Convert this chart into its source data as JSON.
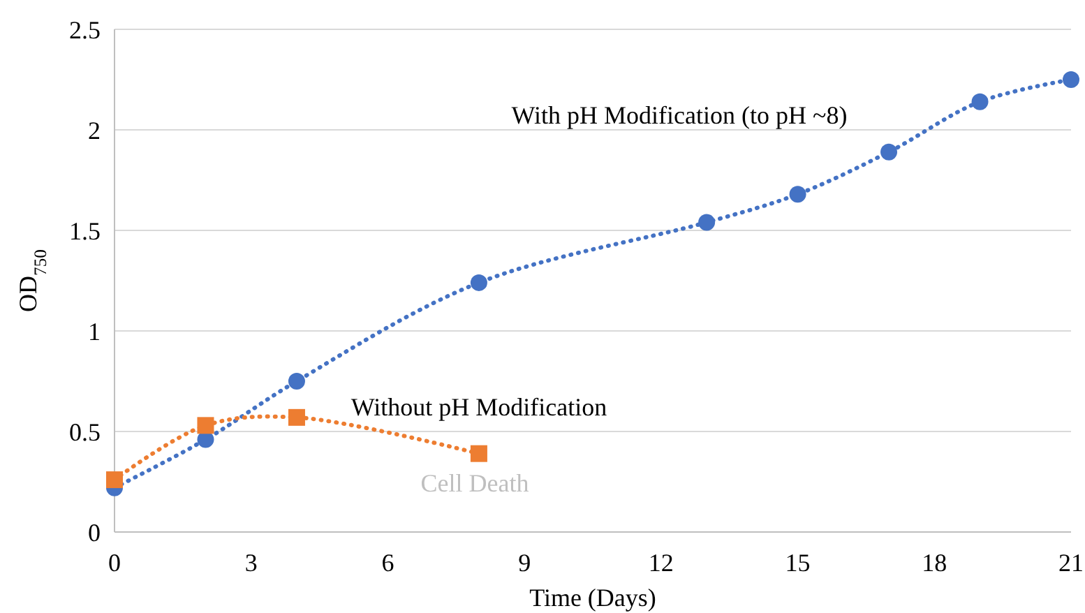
{
  "chart_data": {
    "type": "line",
    "xlabel": "Time (Days)",
    "ylabel": "OD$_{750}$",
    "xlim": [
      0,
      21
    ],
    "xticks": [
      0,
      3,
      6,
      9,
      12,
      15,
      18,
      21
    ],
    "ylim": [
      0,
      2.5
    ],
    "yticks": [
      0,
      0.5,
      1,
      1.5,
      2,
      2.5
    ],
    "grid": "y",
    "line_style": "dotted",
    "series": [
      {
        "name": "With pH Modification (to pH ~8)",
        "color": "#4472c4",
        "marker": "circle",
        "x": [
          0,
          2,
          4,
          8,
          13,
          15,
          17,
          19,
          21
        ],
        "values": [
          0.22,
          0.46,
          0.75,
          1.24,
          1.54,
          1.68,
          1.89,
          2.14,
          2.25
        ]
      },
      {
        "name": "Without pH Modification",
        "color": "#ed7d31",
        "marker": "square",
        "x": [
          0,
          2,
          4,
          8
        ],
        "values": [
          0.26,
          0.53,
          0.57,
          0.39
        ]
      }
    ],
    "annotations": [
      "Cell Death"
    ]
  }
}
